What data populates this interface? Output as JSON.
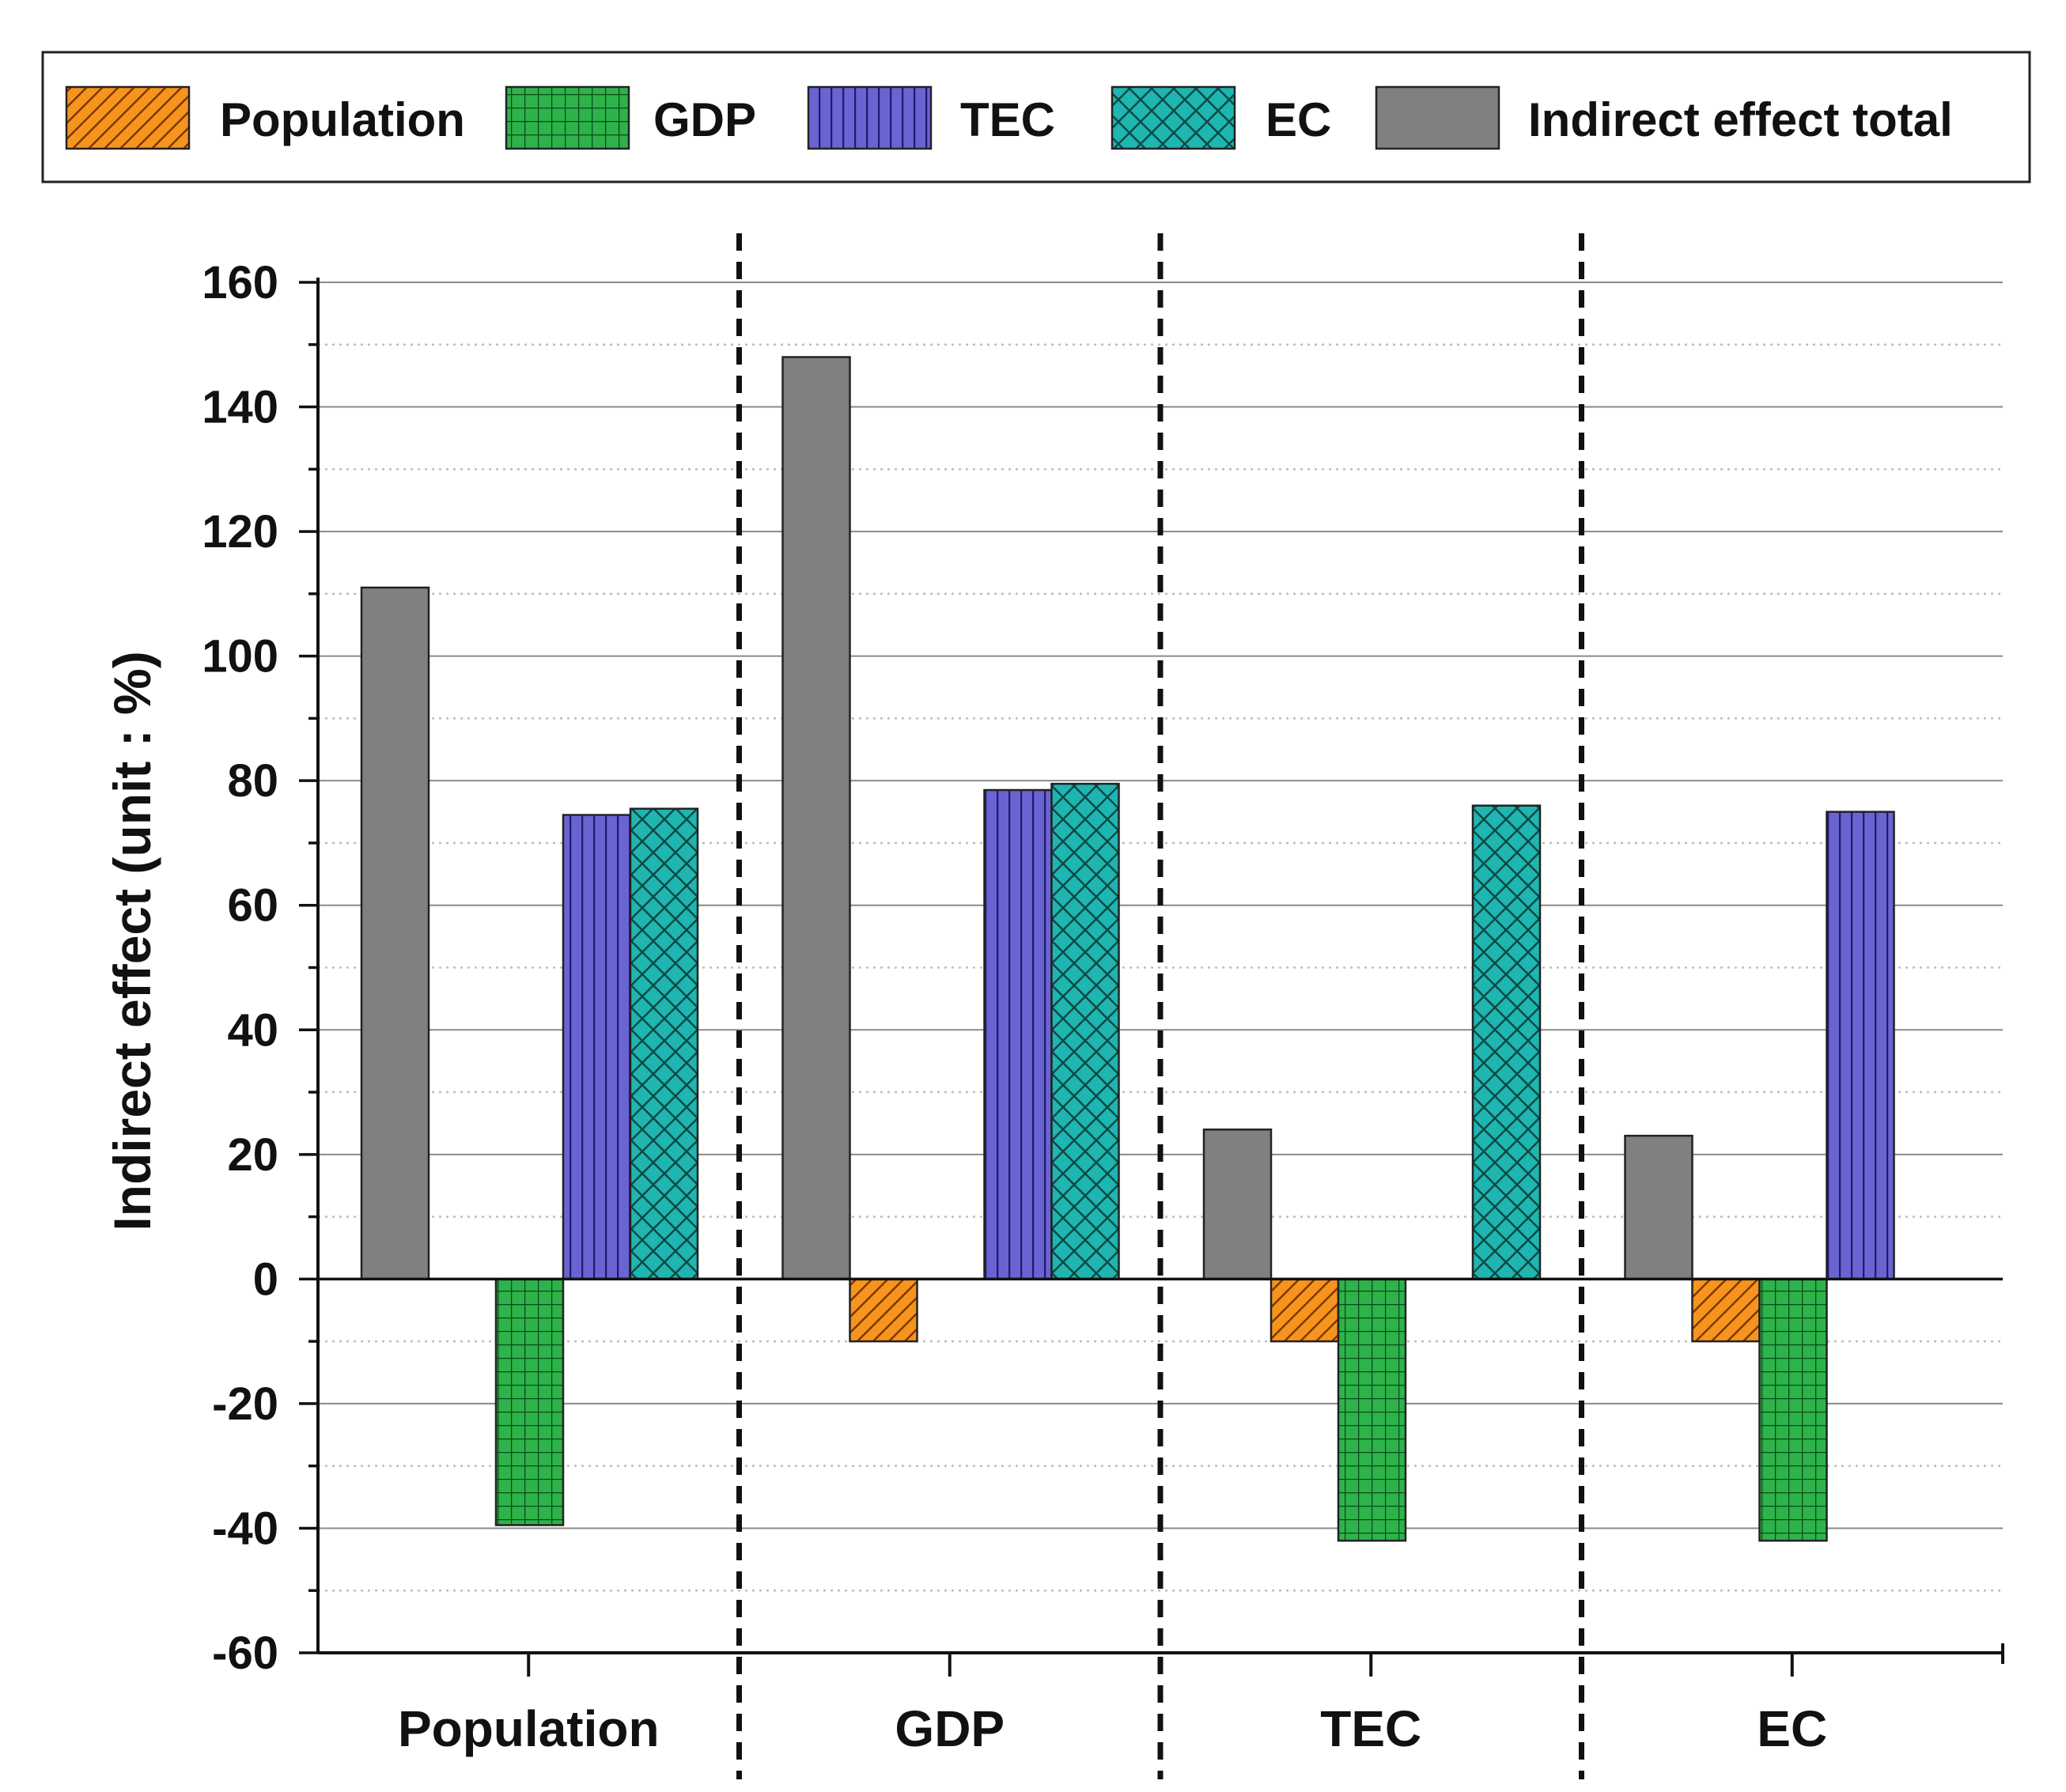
{
  "chart_data": {
    "type": "bar",
    "title": "",
    "xlabel": "",
    "ylabel": "Indirect effect (unit : %)",
    "ylim": [
      -60,
      160
    ],
    "yticks": [
      160,
      140,
      120,
      100,
      80,
      60,
      40,
      20,
      0,
      -20,
      -40,
      -60
    ],
    "ytick_labels": [
      "160",
      "140",
      "120",
      "100",
      "80",
      "60",
      "40",
      "20",
      "0",
      "-20",
      "-40",
      "-60"
    ],
    "categories": [
      "Population",
      "GDP",
      "TEC",
      "EC"
    ],
    "series": [
      {
        "name": "Indirect effect total",
        "key": "total",
        "color": "#808080",
        "pattern": "solid",
        "values": [
          111,
          148,
          24,
          23
        ]
      },
      {
        "name": "Population",
        "key": "population",
        "color": "#F7941D",
        "pattern": "diagonal",
        "values": [
          null,
          -10,
          -10,
          -10
        ]
      },
      {
        "name": "GDP",
        "key": "gdp",
        "color": "#2DB34A",
        "pattern": "grid",
        "values": [
          -39.5,
          null,
          -42,
          -42
        ]
      },
      {
        "name": "TEC",
        "key": "tec",
        "color": "#6A64D2",
        "pattern": "vertical",
        "values": [
          74.5,
          78.5,
          null,
          75
        ]
      },
      {
        "name": "EC",
        "key": "ec",
        "color": "#1FB5B0",
        "pattern": "crosshatch",
        "values": [
          75.5,
          79.5,
          76,
          null
        ]
      }
    ],
    "legend": {
      "position": "top",
      "entries": [
        "Population",
        "GDP",
        "TEC",
        "EC",
        "Indirect effect total"
      ]
    },
    "grid": true,
    "group_separators": "dashed-vertical"
  }
}
